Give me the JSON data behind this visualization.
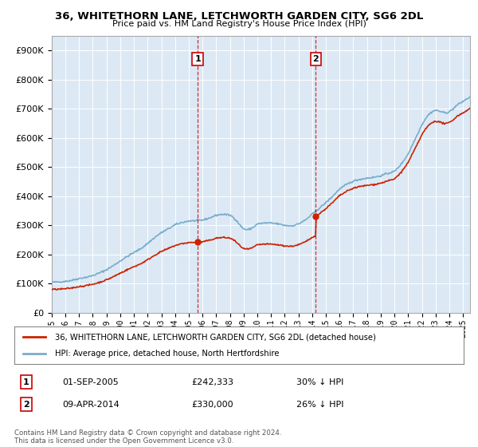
{
  "title": "36, WHITETHORN LANE, LETCHWORTH GARDEN CITY, SG6 2DL",
  "subtitle": "Price paid vs. HM Land Registry's House Price Index (HPI)",
  "background_color": "#ffffff",
  "plot_bg_color": "#dce9f5",
  "ylim": [
    0,
    950000
  ],
  "yticks": [
    0,
    100000,
    200000,
    300000,
    400000,
    500000,
    600000,
    700000,
    800000,
    900000
  ],
  "hpi_color": "#7aadcc",
  "price_color": "#cc2200",
  "marker1_date": 2005.67,
  "marker1_price": 242333,
  "marker2_date": 2014.27,
  "marker2_price": 330000,
  "legend_line1": "36, WHITETHORN LANE, LETCHWORTH GARDEN CITY, SG6 2DL (detached house)",
  "legend_line2": "HPI: Average price, detached house, North Hertfordshire",
  "table_row1": [
    "1",
    "01-SEP-2005",
    "£242,333",
    "30% ↓ HPI"
  ],
  "table_row2": [
    "2",
    "09-APR-2014",
    "£330,000",
    "26% ↓ HPI"
  ],
  "footer": "Contains HM Land Registry data © Crown copyright and database right 2024.\nThis data is licensed under the Open Government Licence v3.0.",
  "xmin": 1995,
  "xmax": 2025.5,
  "hpi_breakpoints_x": [
    1995.0,
    1995.5,
    1996.0,
    1996.5,
    1997.0,
    1997.5,
    1998.0,
    1998.5,
    1999.0,
    1999.5,
    2000.0,
    2000.5,
    2001.0,
    2001.5,
    2002.0,
    2002.5,
    2003.0,
    2003.5,
    2004.0,
    2004.5,
    2005.0,
    2005.5,
    2006.0,
    2006.5,
    2007.0,
    2007.5,
    2008.0,
    2008.25,
    2008.5,
    2008.75,
    2009.0,
    2009.25,
    2009.5,
    2009.75,
    2010.0,
    2010.5,
    2011.0,
    2011.5,
    2012.0,
    2012.5,
    2013.0,
    2013.5,
    2014.0,
    2014.5,
    2015.0,
    2015.5,
    2016.0,
    2016.5,
    2017.0,
    2017.5,
    2018.0,
    2018.5,
    2019.0,
    2019.5,
    2020.0,
    2020.5,
    2021.0,
    2021.5,
    2022.0,
    2022.25,
    2022.5,
    2022.75,
    2023.0,
    2023.25,
    2023.5,
    2023.75,
    2024.0,
    2024.25,
    2024.5,
    2024.75,
    2025.0,
    2025.5
  ],
  "hpi_breakpoints_y": [
    105000,
    106000,
    108000,
    112000,
    118000,
    122000,
    128000,
    137000,
    148000,
    162000,
    178000,
    193000,
    207000,
    220000,
    238000,
    258000,
    275000,
    288000,
    302000,
    310000,
    315000,
    316000,
    318000,
    325000,
    335000,
    338000,
    335000,
    328000,
    315000,
    300000,
    288000,
    285000,
    288000,
    295000,
    305000,
    308000,
    308000,
    305000,
    300000,
    298000,
    305000,
    318000,
    338000,
    358000,
    378000,
    400000,
    425000,
    440000,
    452000,
    458000,
    462000,
    465000,
    470000,
    478000,
    485000,
    510000,
    545000,
    595000,
    645000,
    665000,
    680000,
    690000,
    695000,
    692000,
    688000,
    685000,
    690000,
    698000,
    710000,
    718000,
    725000,
    740000
  ]
}
